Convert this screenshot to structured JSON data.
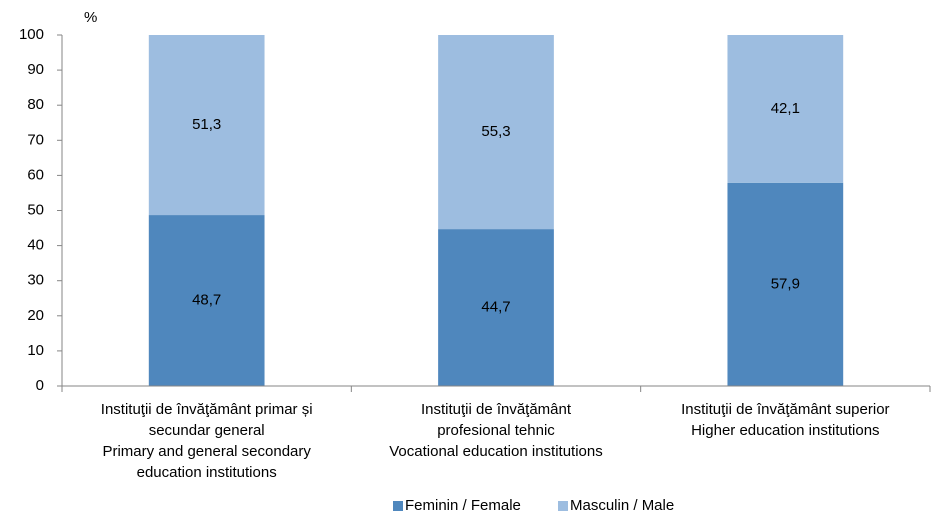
{
  "chart_data": {
    "type": "stacked_bar",
    "y_label": "%",
    "categories": [
      [
        "Instituţii de învăţământ primar și",
        "secundar general",
        "Primary and general secondary",
        "education institutions"
      ],
      [
        "Instituţii de învăţământ",
        "profesional tehnic",
        "Vocational education institutions"
      ],
      [
        "Instituţii de învăţământ superior",
        "Higher education institutions"
      ]
    ],
    "series": [
      {
        "name": "Feminin / Female",
        "color": "#4f87bd",
        "values": [
          48.7,
          44.7,
          57.9
        ],
        "value_labels": [
          "48,7",
          "44,7",
          "57,9"
        ]
      },
      {
        "name": "Masculin / Male",
        "color": "#9dbde0",
        "values": [
          51.3,
          55.3,
          42.1
        ],
        "value_labels": [
          "51,3",
          "55,3",
          "42,1"
        ]
      }
    ],
    "ylim": [
      0,
      100
    ],
    "yticks": [
      0,
      10,
      20,
      30,
      40,
      50,
      60,
      70,
      80,
      90,
      100
    ],
    "grid": false,
    "legend": "bottom"
  }
}
